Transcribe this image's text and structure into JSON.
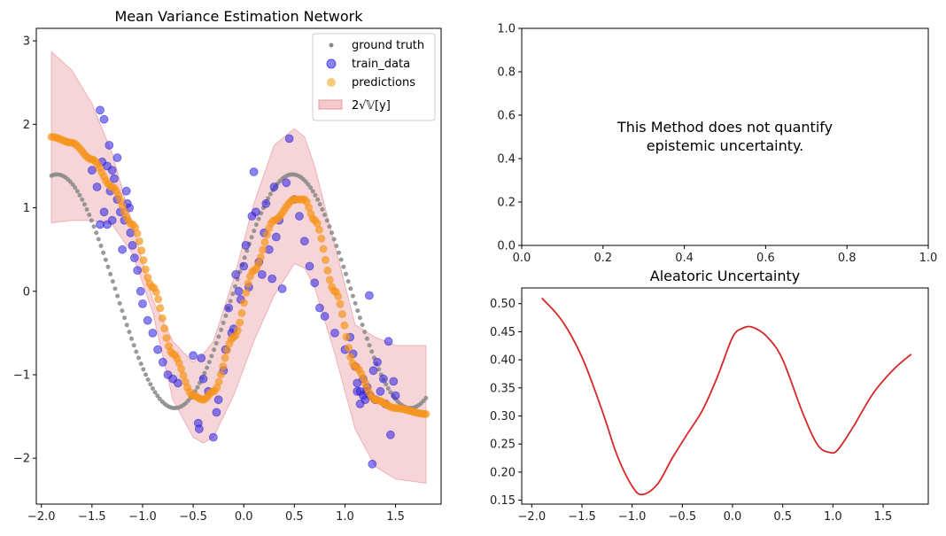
{
  "chart_data": [
    {
      "type": "scatter",
      "title": "Mean Variance Estimation Network",
      "xlabel": "",
      "ylabel": "",
      "xlim": [
        -2.05,
        1.95
      ],
      "ylim": [
        -2.55,
        3.15
      ],
      "xticks": [
        -2.0,
        -1.5,
        -1.0,
        -0.5,
        0.0,
        0.5,
        1.0,
        1.5
      ],
      "xtick_labels": [
        "−2.0",
        "−1.5",
        "−1.0",
        "−0.5",
        "0.0",
        "0.5",
        "1.0",
        "1.5"
      ],
      "yticks": [
        -2,
        -1,
        0,
        1,
        2,
        3
      ],
      "ytick_labels": [
        "−2",
        "−1",
        "0",
        "1",
        "2",
        "3"
      ],
      "legend_position": "top-right",
      "legend": [
        {
          "label": "ground truth",
          "color": "#888888",
          "kind": "small-dot"
        },
        {
          "label": "train_data",
          "color": "#2b1fe0",
          "kind": "dot"
        },
        {
          "label": "predictions",
          "color": "#f5a623",
          "kind": "dot"
        },
        {
          "label": "2√𝕍[y]",
          "color": "#f4c9cc",
          "kind": "patch"
        }
      ],
      "series": [
        {
          "name": "ground truth",
          "x_range": [
            -1.9,
            1.8
          ],
          "n_points": 160,
          "color": "#888888"
        },
        {
          "name": "predictions",
          "color": "#f7941d",
          "x": [
            -1.9,
            -1.7,
            -1.5,
            -1.3,
            -1.1,
            -0.9,
            -0.7,
            -0.5,
            -0.4,
            -0.3,
            -0.1,
            0.1,
            0.3,
            0.5,
            0.6,
            0.7,
            0.9,
            1.1,
            1.3,
            1.5,
            1.8
          ],
          "y": [
            1.85,
            1.78,
            1.58,
            1.25,
            0.8,
            0.05,
            -0.75,
            -1.25,
            -1.3,
            -1.2,
            -0.55,
            0.25,
            0.85,
            1.1,
            1.1,
            0.85,
            0.0,
            -0.9,
            -1.3,
            -1.4,
            -1.47
          ]
        },
        {
          "name": "2√𝕍[y]",
          "color": "#e27d86",
          "x": [
            -1.9,
            -1.7,
            -1.5,
            -1.3,
            -1.1,
            -0.9,
            -0.7,
            -0.5,
            -0.4,
            -0.3,
            -0.1,
            0.1,
            0.3,
            0.5,
            0.6,
            0.7,
            0.9,
            1.1,
            1.3,
            1.5,
            1.8
          ],
          "upper": [
            2.87,
            2.65,
            2.25,
            1.65,
            0.8,
            -0.1,
            -0.6,
            -0.85,
            -0.75,
            -0.6,
            0.15,
            1.05,
            1.75,
            1.95,
            1.85,
            1.5,
            0.55,
            -0.4,
            -0.55,
            -0.65,
            -0.65
          ],
          "lower": [
            0.82,
            0.85,
            0.85,
            0.8,
            0.45,
            -0.25,
            -1.3,
            -1.75,
            -1.82,
            -1.75,
            -1.25,
            -0.6,
            -0.05,
            0.33,
            0.28,
            0.05,
            -0.75,
            -1.65,
            -2.1,
            -2.25,
            -2.3
          ]
        },
        {
          "name": "train_data",
          "color": "#2b1fe0",
          "points": [
            [
              -1.42,
              2.17
            ],
            [
              -1.38,
              2.06
            ],
            [
              -1.33,
              1.75
            ],
            [
              -1.4,
              1.55
            ],
            [
              -1.35,
              1.5
            ],
            [
              -1.3,
              1.45
            ],
            [
              -1.28,
              1.35
            ],
            [
              -1.32,
              1.2
            ],
            [
              -1.25,
              1.1
            ],
            [
              -1.22,
              0.95
            ],
            [
              -1.15,
              1.05
            ],
            [
              -1.18,
              0.85
            ],
            [
              -1.12,
              0.7
            ],
            [
              -1.1,
              0.55
            ],
            [
              -1.2,
              0.5
            ],
            [
              -1.08,
              0.4
            ],
            [
              -1.05,
              0.25
            ],
            [
              -1.3,
              0.85
            ],
            [
              -1.38,
              0.95
            ],
            [
              -1.45,
              1.25
            ],
            [
              -1.5,
              1.45
            ],
            [
              -1.25,
              1.6
            ],
            [
              -1.16,
              1.2
            ],
            [
              -1.13,
              1.0
            ],
            [
              -1.35,
              0.8
            ],
            [
              -1.42,
              0.8
            ],
            [
              -1.02,
              0.0
            ],
            [
              -1.0,
              -0.15
            ],
            [
              -0.95,
              -0.35
            ],
            [
              -0.9,
              -0.5
            ],
            [
              -0.85,
              -0.7
            ],
            [
              -0.8,
              -0.85
            ],
            [
              -0.75,
              -1.0
            ],
            [
              -0.7,
              -1.05
            ],
            [
              -0.65,
              -1.1
            ],
            [
              -0.5,
              -0.77
            ],
            [
              -0.45,
              -1.58
            ],
            [
              -0.44,
              -1.65
            ],
            [
              -0.42,
              -0.8
            ],
            [
              -0.4,
              -1.05
            ],
            [
              -0.35,
              -1.2
            ],
            [
              -0.3,
              -1.75
            ],
            [
              -0.27,
              -1.45
            ],
            [
              -0.25,
              -1.3
            ],
            [
              -0.2,
              -0.95
            ],
            [
              -0.18,
              -0.7
            ],
            [
              -0.15,
              -0.2
            ],
            [
              -0.12,
              -0.5
            ],
            [
              -0.1,
              -0.45
            ],
            [
              -0.08,
              0.2
            ],
            [
              -0.05,
              0.0
            ],
            [
              -0.03,
              -0.1
            ],
            [
              0.0,
              0.3
            ],
            [
              0.02,
              0.55
            ],
            [
              0.05,
              0.05
            ],
            [
              0.08,
              0.9
            ],
            [
              0.1,
              1.43
            ],
            [
              0.12,
              0.95
            ],
            [
              0.15,
              0.35
            ],
            [
              0.18,
              0.2
            ],
            [
              0.2,
              0.7
            ],
            [
              0.22,
              1.05
            ],
            [
              0.25,
              0.5
            ],
            [
              0.28,
              0.15
            ],
            [
              0.3,
              1.25
            ],
            [
              0.32,
              0.65
            ],
            [
              0.35,
              0.85
            ],
            [
              0.38,
              0.03
            ],
            [
              0.42,
              1.3
            ],
            [
              0.45,
              1.83
            ],
            [
              0.5,
              1.1
            ],
            [
              0.55,
              0.9
            ],
            [
              0.6,
              0.6
            ],
            [
              0.65,
              0.3
            ],
            [
              0.7,
              0.1
            ],
            [
              0.75,
              -0.2
            ],
            [
              0.8,
              -0.3
            ],
            [
              0.9,
              -0.5
            ],
            [
              1.0,
              -0.7
            ],
            [
              1.05,
              -0.55
            ],
            [
              1.08,
              -0.75
            ],
            [
              1.1,
              -0.9
            ],
            [
              1.12,
              -1.1
            ],
            [
              1.15,
              -1.2
            ],
            [
              1.18,
              -1.05
            ],
            [
              1.2,
              -1.3
            ],
            [
              1.22,
              -1.15
            ],
            [
              1.24,
              -0.05
            ],
            [
              1.25,
              -1.25
            ],
            [
              1.28,
              -0.95
            ],
            [
              1.3,
              -1.3
            ],
            [
              1.27,
              -2.07
            ],
            [
              1.32,
              -0.85
            ],
            [
              1.35,
              -1.2
            ],
            [
              1.38,
              -1.05
            ],
            [
              1.4,
              -1.35
            ],
            [
              1.43,
              -0.6
            ],
            [
              1.45,
              -1.72
            ],
            [
              1.48,
              -1.08
            ],
            [
              1.5,
              -1.25
            ],
            [
              1.12,
              -1.2
            ],
            [
              1.15,
              -1.35
            ],
            [
              1.18,
              -1.25
            ],
            [
              1.21,
              -1.2
            ]
          ]
        }
      ]
    },
    {
      "type": "text",
      "title": "",
      "xlim": [
        0,
        1
      ],
      "ylim": [
        0,
        1
      ],
      "xticks": [
        0.0,
        0.2,
        0.4,
        0.6,
        0.8,
        1.0
      ],
      "xtick_labels": [
        "0.0",
        "0.2",
        "0.4",
        "0.6",
        "0.8",
        "1.0"
      ],
      "yticks": [
        0.0,
        0.2,
        0.4,
        0.6,
        0.8,
        1.0
      ],
      "ytick_labels": [
        "0.0",
        "0.2",
        "0.4",
        "0.6",
        "0.8",
        "1.0"
      ],
      "annotation_lines": [
        "This Method does not quantify",
        "epistemic uncertainty."
      ]
    },
    {
      "type": "line",
      "title": "Aleatoric Uncertainty",
      "xlabel": "",
      "ylabel": "",
      "xlim": [
        -2.1,
        1.95
      ],
      "ylim": [
        0.143,
        0.528
      ],
      "xticks": [
        -2.0,
        -1.5,
        -1.0,
        -0.5,
        0.0,
        0.5,
        1.0,
        1.5
      ],
      "xtick_labels": [
        "−2.0",
        "−1.5",
        "−1.0",
        "−0.5",
        "0.0",
        "0.5",
        "1.0",
        "1.5"
      ],
      "yticks": [
        0.15,
        0.2,
        0.25,
        0.3,
        0.35,
        0.4,
        0.45,
        0.5
      ],
      "ytick_labels": [
        "0.15",
        "0.20",
        "0.25",
        "0.30",
        "0.35",
        "0.40",
        "0.45",
        "0.50"
      ],
      "series": [
        {
          "name": "",
          "color": "#d62728",
          "x": [
            -1.9,
            -1.7,
            -1.5,
            -1.3,
            -1.15,
            -1.0,
            -0.9,
            -0.75,
            -0.6,
            -0.45,
            -0.3,
            -0.15,
            0.0,
            0.1,
            0.2,
            0.35,
            0.5,
            0.7,
            0.85,
            0.97,
            1.05,
            1.2,
            1.4,
            1.6,
            1.78
          ],
          "y": [
            0.51,
            0.47,
            0.405,
            0.31,
            0.23,
            0.175,
            0.16,
            0.178,
            0.225,
            0.268,
            0.31,
            0.37,
            0.44,
            0.456,
            0.458,
            0.44,
            0.4,
            0.305,
            0.248,
            0.235,
            0.24,
            0.28,
            0.34,
            0.382,
            0.41
          ]
        }
      ]
    }
  ]
}
